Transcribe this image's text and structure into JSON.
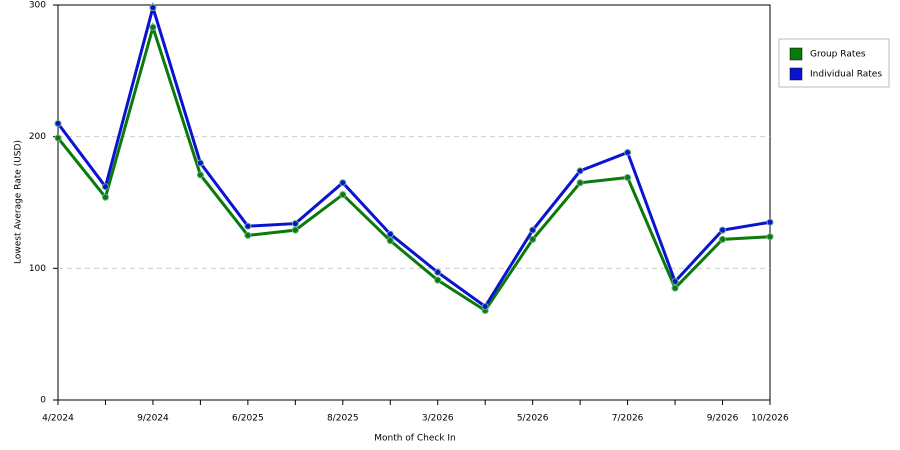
{
  "chart_data": {
    "type": "line",
    "x_label": "Month of Check In",
    "y_label": "Lowest Average Rate (USD)",
    "categories": [
      "4/2024",
      null,
      "9/2024",
      null,
      "6/2025",
      null,
      "8/2025",
      null,
      "3/2026",
      null,
      "5/2026",
      null,
      "7/2026",
      null,
      "9/2026",
      "10/2026"
    ],
    "series": [
      {
        "name": "Group Rates",
        "color": "#0a7a0a",
        "values": [
          199,
          154,
          283,
          171,
          125,
          129,
          156,
          121,
          91,
          68,
          122,
          165,
          169,
          85,
          122,
          124
        ]
      },
      {
        "name": "Individual Rates",
        "color": "#0a14d0",
        "values": [
          210,
          162,
          298,
          180,
          132,
          134,
          165,
          126,
          97,
          71,
          129,
          174,
          188,
          90,
          129,
          135
        ]
      }
    ],
    "ylim": [
      0,
      300
    ],
    "yticks": [
      0,
      100,
      200,
      300
    ],
    "grid": true,
    "legend": "right"
  }
}
